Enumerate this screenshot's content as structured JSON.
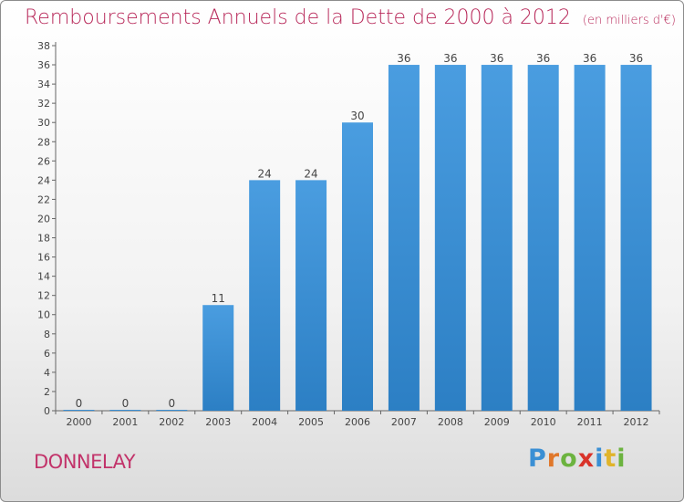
{
  "header": {
    "title": "Remboursements Annuels de la Dette de 2000 à 2012",
    "unit": "(en milliers d'€)"
  },
  "commune": "DONNELAY",
  "brand": {
    "letters": [
      "P",
      "r",
      "o",
      "x",
      "i",
      "t",
      "i"
    ],
    "colors": [
      "#3a8fd4",
      "#e0772a",
      "#6cb33f",
      "#d9332a",
      "#3a8fd4",
      "#e0b42a",
      "#6cb33f"
    ]
  },
  "colors": {
    "bar": "#4a9de0",
    "bar_dark": "#2c7fc4",
    "title": "#b8295a"
  },
  "chart_data": {
    "type": "bar",
    "categories": [
      "2000",
      "2001",
      "2002",
      "2003",
      "2004",
      "2005",
      "2006",
      "2007",
      "2008",
      "2009",
      "2010",
      "2011",
      "2012"
    ],
    "values": [
      0,
      0,
      0,
      11,
      24,
      24,
      30,
      36,
      36,
      36,
      36,
      36,
      36
    ],
    "data_labels": [
      "0",
      "0",
      "0",
      "11",
      "24",
      "24",
      "30",
      "36",
      "36",
      "36",
      "36",
      "36",
      "36"
    ],
    "yticks": [
      0,
      2,
      4,
      6,
      8,
      10,
      12,
      14,
      16,
      18,
      20,
      22,
      24,
      26,
      28,
      30,
      32,
      34,
      36,
      38
    ],
    "ylim": [
      0,
      38
    ],
    "grid": false
  }
}
